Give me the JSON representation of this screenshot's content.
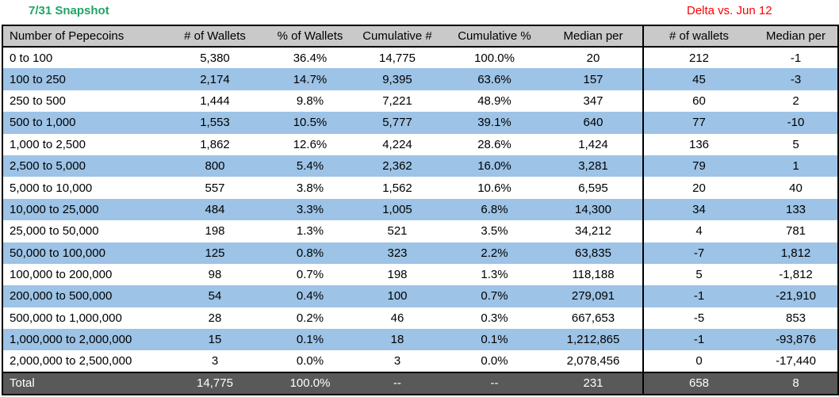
{
  "titles": {
    "left": "7/31 Snapshot",
    "right": "Delta vs. Jun 12"
  },
  "colors": {
    "row_alt": "#9DC3E6",
    "header_bg": "#C9C9C9",
    "total_bg": "#595959",
    "title_left": "#21A366",
    "title_right": "#FF0000",
    "border": "#000000"
  },
  "table": {
    "headers": [
      "Number of Pepecoins",
      "# of Wallets",
      "% of Wallets",
      "Cumulative #",
      "Cumulative %",
      "Median per",
      "# of wallets",
      "Median per"
    ],
    "rows": [
      [
        "0 to 100",
        "5,380",
        "36.4%",
        "14,775",
        "100.0%",
        "20",
        "212",
        "-1"
      ],
      [
        "100 to 250",
        "2,174",
        "14.7%",
        "9,395",
        "63.6%",
        "157",
        "45",
        "-3"
      ],
      [
        "250 to 500",
        "1,444",
        "9.8%",
        "7,221",
        "48.9%",
        "347",
        "60",
        "2"
      ],
      [
        "500 to 1,000",
        "1,553",
        "10.5%",
        "5,777",
        "39.1%",
        "640",
        "77",
        "-10"
      ],
      [
        "1,000 to 2,500",
        "1,862",
        "12.6%",
        "4,224",
        "28.6%",
        "1,424",
        "136",
        "5"
      ],
      [
        "2,500 to 5,000",
        "800",
        "5.4%",
        "2,362",
        "16.0%",
        "3,281",
        "79",
        "1"
      ],
      [
        "5,000 to 10,000",
        "557",
        "3.8%",
        "1,562",
        "10.6%",
        "6,595",
        "20",
        "40"
      ],
      [
        "10,000 to 25,000",
        "484",
        "3.3%",
        "1,005",
        "6.8%",
        "14,300",
        "34",
        "133"
      ],
      [
        "25,000 to 50,000",
        "198",
        "1.3%",
        "521",
        "3.5%",
        "34,212",
        "4",
        "781"
      ],
      [
        "50,000 to 100,000",
        "125",
        "0.8%",
        "323",
        "2.2%",
        "63,835",
        "-7",
        "1,812"
      ],
      [
        "100,000 to 200,000",
        "98",
        "0.7%",
        "198",
        "1.3%",
        "118,188",
        "5",
        "-1,812"
      ],
      [
        "200,000 to 500,000",
        "54",
        "0.4%",
        "100",
        "0.7%",
        "279,091",
        "-1",
        "-21,910"
      ],
      [
        "500,000 to 1,000,000",
        "28",
        "0.2%",
        "46",
        "0.3%",
        "667,653",
        "-5",
        "853"
      ],
      [
        "1,000,000 to 2,000,000",
        "15",
        "0.1%",
        "18",
        "0.1%",
        "1,212,865",
        "-1",
        "-93,876"
      ],
      [
        "2,000,000 to 2,500,000",
        "3",
        "0.0%",
        "3",
        "0.0%",
        "2,078,456",
        "0",
        "-17,440"
      ]
    ],
    "total": [
      "Total",
      "14,775",
      "100.0%",
      "--",
      "--",
      "231",
      "658",
      "8"
    ]
  }
}
